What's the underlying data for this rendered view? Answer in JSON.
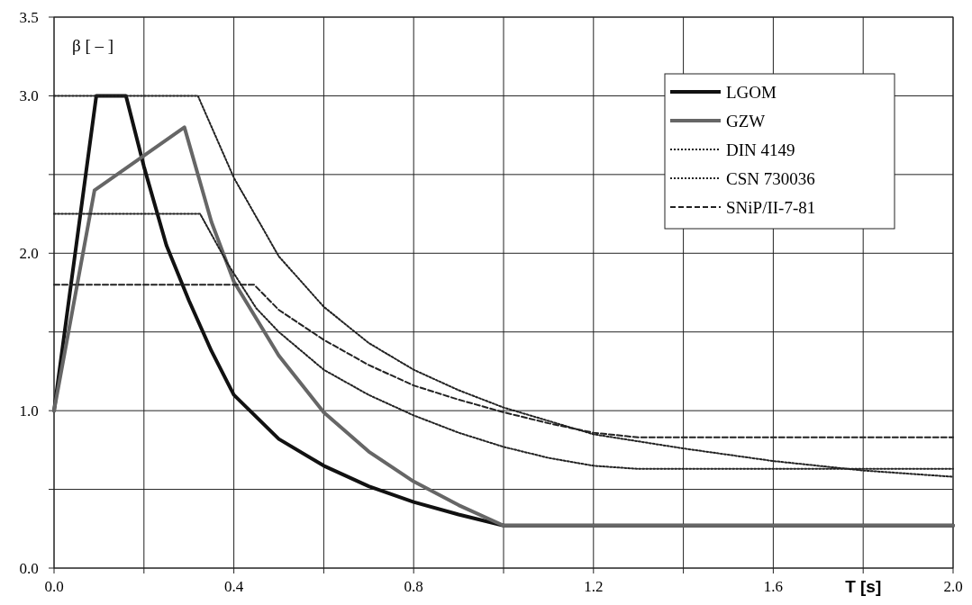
{
  "chart_data": {
    "type": "line",
    "xlabel": "T [s]",
    "ylabel": "β [ – ]",
    "xlim": [
      0,
      2.0
    ],
    "ylim": [
      0,
      3.5
    ],
    "xticks": [
      {
        "value": 0,
        "label": "0.0"
      },
      {
        "value": 0.2,
        "label": null
      },
      {
        "value": 0.4,
        "label": "0.4"
      },
      {
        "value": 0.6,
        "label": null
      },
      {
        "value": 0.8,
        "label": "0.8"
      },
      {
        "value": 1.0,
        "label": null
      },
      {
        "value": 1.2,
        "label": "1.2"
      },
      {
        "value": 1.4,
        "label": null
      },
      {
        "value": 1.6,
        "label": "1.6"
      },
      {
        "value": 1.8,
        "label": null
      },
      {
        "value": 2.0,
        "label": "2.0"
      }
    ],
    "yticks": [
      {
        "value": 0,
        "label": "0.0"
      },
      {
        "value": 0.5,
        "label": null
      },
      {
        "value": 1.0,
        "label": "1.0"
      },
      {
        "value": 1.5,
        "label": null
      },
      {
        "value": 2.0,
        "label": "2.0"
      },
      {
        "value": 2.5,
        "label": null
      },
      {
        "value": 3.0,
        "label": "3.0"
      },
      {
        "value": 3.5,
        "label": "3.5"
      }
    ],
    "grid": true,
    "legend": "top right",
    "series": [
      {
        "name": "LGOM",
        "color": "#111111",
        "line_style": "solid",
        "x": [
          0,
          0.094,
          0.16,
          0.2,
          0.25,
          0.3,
          0.35,
          0.4,
          0.5,
          0.6,
          0.7,
          0.8,
          0.9,
          1.0,
          2.0
        ],
        "values": [
          1.0,
          3.0,
          3.0,
          2.55,
          2.05,
          1.7,
          1.38,
          1.1,
          0.82,
          0.65,
          0.52,
          0.42,
          0.34,
          0.27,
          0.27
        ]
      },
      {
        "name": "GZW",
        "color": "#666666",
        "line_style": "solid",
        "x": [
          0,
          0.09,
          0.29,
          0.35,
          0.4,
          0.5,
          0.6,
          0.7,
          0.8,
          0.9,
          1.0,
          2.0
        ],
        "values": [
          1.0,
          2.4,
          2.8,
          2.2,
          1.82,
          1.35,
          0.99,
          0.74,
          0.55,
          0.4,
          0.27,
          0.27
        ]
      },
      {
        "name": "DIN 4149",
        "color": "#222222",
        "line_style": "dotted",
        "x": [
          0,
          0.32,
          0.4,
          0.5,
          0.6,
          0.7,
          0.8,
          0.9,
          1.0,
          1.2,
          1.4,
          1.6,
          1.8,
          2.0
        ],
        "values": [
          3.0,
          3.0,
          2.48,
          1.98,
          1.66,
          1.43,
          1.26,
          1.13,
          1.02,
          0.85,
          0.76,
          0.68,
          0.62,
          0.58
        ]
      },
      {
        "name": "CSN 730036",
        "color": "#222222",
        "line_style": "dotted",
        "x": [
          0,
          0.325,
          0.387,
          0.45,
          0.5,
          0.6,
          0.7,
          0.8,
          0.9,
          1.0,
          1.1,
          1.2,
          1.3,
          2.0
        ],
        "values": [
          2.25,
          2.25,
          1.93,
          1.65,
          1.5,
          1.26,
          1.1,
          0.97,
          0.86,
          0.77,
          0.7,
          0.65,
          0.63,
          0.63
        ]
      },
      {
        "name": "SNiP/II-7-81",
        "color": "#222222",
        "line_style": "dashed",
        "x": [
          0,
          0.445,
          0.5,
          0.6,
          0.7,
          0.8,
          0.9,
          1.0,
          1.1,
          1.2,
          1.3,
          2.0
        ],
        "values": [
          1.8,
          1.8,
          1.64,
          1.45,
          1.29,
          1.16,
          1.07,
          0.99,
          0.92,
          0.86,
          0.83,
          0.83
        ]
      }
    ]
  }
}
